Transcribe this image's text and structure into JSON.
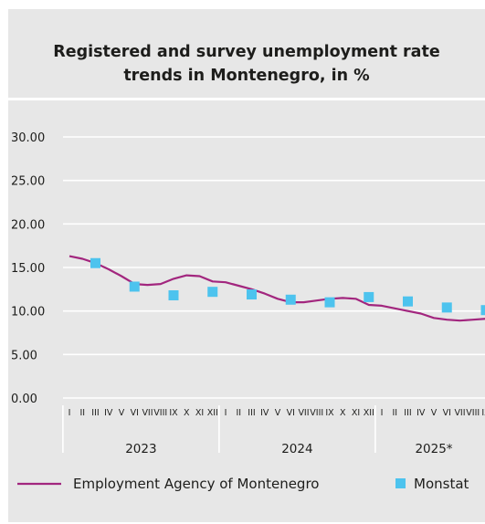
{
  "chart_data": {
    "type": "line",
    "title": "Registered and survey unemployment rate trends in Montenegro, in %",
    "title_lines": [
      "Registered and survey unemployment rate",
      "trends in Montenegro, in %"
    ],
    "ylim": [
      0,
      30
    ],
    "y_ticks": [
      "0.00",
      "5.00",
      "10.00",
      "15.00",
      "20.00",
      "25.00",
      "30.00"
    ],
    "grid": true,
    "legend_position": "bottom",
    "month_labels": [
      "I",
      "II",
      "III",
      "IV",
      "V",
      "VI",
      "VII",
      "VIII",
      "IX",
      "X",
      "XI",
      "XII",
      "I",
      "II",
      "III",
      "IV",
      "V",
      "VI",
      "VII",
      "VIII",
      "IX",
      "X",
      "XI",
      "XII",
      "I",
      "II",
      "III",
      "IV",
      "V",
      "VI",
      "VII",
      "VIII",
      "IX"
    ],
    "years": [
      {
        "label": "2023",
        "months": 12
      },
      {
        "label": "2024",
        "months": 12
      },
      {
        "label": "2025*",
        "months": 9
      }
    ],
    "series": [
      {
        "name": "Employment Agency of Montenegro",
        "type": "line",
        "color": "#a2267e",
        "values": [
          16.3,
          16.0,
          15.5,
          14.8,
          14.0,
          13.1,
          13.0,
          13.1,
          13.7,
          14.1,
          14.0,
          13.4,
          13.3,
          12.9,
          12.5,
          12.0,
          11.4,
          11.0,
          11.0,
          11.2,
          11.4,
          11.5,
          11.4,
          10.7,
          10.6,
          10.3,
          10.0,
          9.7,
          9.2,
          9.0,
          8.9,
          9.0,
          9.1
        ]
      },
      {
        "name": "Monstat",
        "type": "scatter",
        "color": "#4dc3ee",
        "points": [
          {
            "month_index": 2,
            "value": 15.5
          },
          {
            "month_index": 5,
            "value": 12.8
          },
          {
            "month_index": 8,
            "value": 11.8
          },
          {
            "month_index": 11,
            "value": 12.2
          },
          {
            "month_index": 14,
            "value": 11.9
          },
          {
            "month_index": 17,
            "value": 11.3
          },
          {
            "month_index": 20,
            "value": 11.0
          },
          {
            "month_index": 23,
            "value": 11.6
          },
          {
            "month_index": 26,
            "value": 11.1
          },
          {
            "month_index": 29,
            "value": 10.4
          },
          {
            "month_index": 32,
            "value": 10.1
          }
        ]
      }
    ]
  }
}
